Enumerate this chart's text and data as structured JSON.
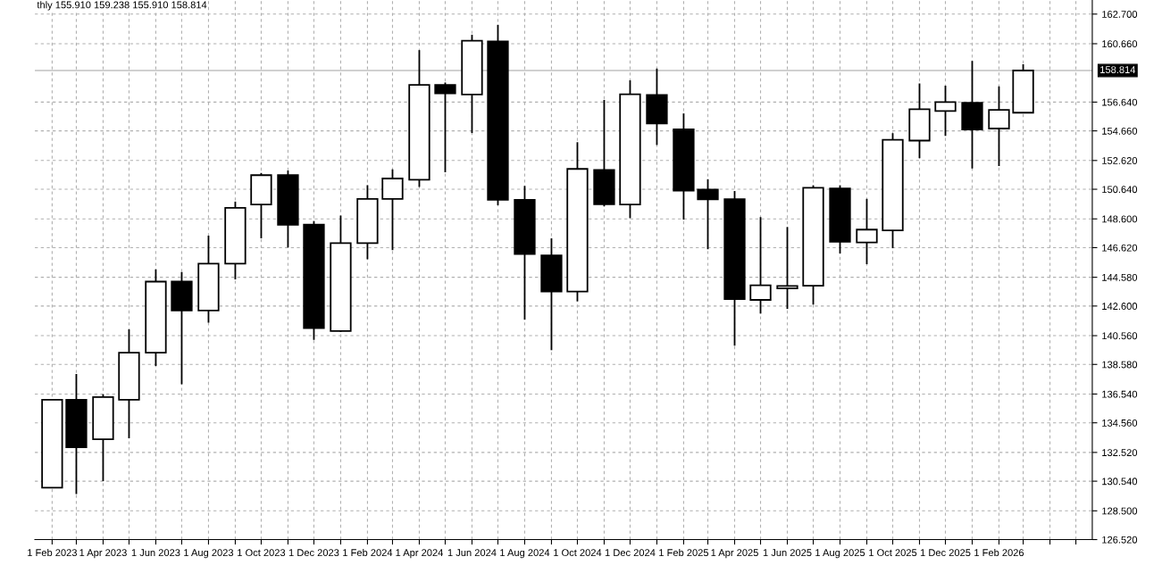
{
  "chart_data": {
    "type": "candlestick",
    "annotations": [
      "thly 155.910 159.238 155.910 158.814"
    ],
    "x": [
      "2023-02",
      "2023-03",
      "2023-04",
      "2023-05",
      "2023-06",
      "2023-07",
      "2023-08",
      "2023-09",
      "2023-10",
      "2023-11",
      "2023-12",
      "2024-01",
      "2024-02",
      "2024-03",
      "2024-04",
      "2024-05",
      "2024-06",
      "2024-07",
      "2024-08",
      "2024-09",
      "2024-10",
      "2024-11",
      "2024-12",
      "2025-01",
      "2025-02",
      "2025-03",
      "2025-04",
      "2025-05",
      "2025-06",
      "2025-07",
      "2025-08",
      "2025-09",
      "2025-10",
      "2025-11",
      "2025-12",
      "2026-01",
      "2026-02",
      "2026-03"
    ],
    "ohlc": [
      [
        130.09,
        136.15,
        130.09,
        136.15
      ],
      [
        136.15,
        137.92,
        129.66,
        132.87
      ],
      [
        133.43,
        136.53,
        130.55,
        136.33
      ],
      [
        136.15,
        141.0,
        133.5,
        139.39
      ],
      [
        139.39,
        145.12,
        138.48,
        144.28
      ],
      [
        144.28,
        144.94,
        137.21,
        142.29
      ],
      [
        142.29,
        147.44,
        141.45,
        145.52
      ],
      [
        145.52,
        149.79,
        144.43,
        149.36
      ],
      [
        149.59,
        151.76,
        147.26,
        151.61
      ],
      [
        151.61,
        151.93,
        146.63,
        148.2
      ],
      [
        148.2,
        148.45,
        140.27,
        141.08
      ],
      [
        140.88,
        148.83,
        140.82,
        146.93
      ],
      [
        146.93,
        150.92,
        145.82,
        149.97
      ],
      [
        149.97,
        152.01,
        146.45,
        151.38
      ],
      [
        151.3,
        160.22,
        150.8,
        157.82
      ],
      [
        157.82,
        157.99,
        151.81,
        157.24
      ],
      [
        157.16,
        161.28,
        154.51,
        160.87
      ],
      [
        160.82,
        161.96,
        149.54,
        149.91
      ],
      [
        149.91,
        150.87,
        141.66,
        146.18
      ],
      [
        146.08,
        147.26,
        139.56,
        143.6
      ],
      [
        143.6,
        153.88,
        142.92,
        152.04
      ],
      [
        151.97,
        156.79,
        149.46,
        149.61
      ],
      [
        149.59,
        158.14,
        148.65,
        157.18
      ],
      [
        157.13,
        158.95,
        153.69,
        155.17
      ],
      [
        154.77,
        155.86,
        148.55,
        150.54
      ],
      [
        150.62,
        151.33,
        146.51,
        149.95
      ],
      [
        149.95,
        150.52,
        139.87,
        143.07
      ],
      [
        143.02,
        148.72,
        142.08,
        144.03
      ],
      [
        143.81,
        148.04,
        142.4,
        143.98
      ],
      [
        144.0,
        150.91,
        142.7,
        150.74
      ],
      [
        150.69,
        150.91,
        146.22,
        147.03
      ],
      [
        146.98,
        149.98,
        145.48,
        147.86
      ],
      [
        147.81,
        154.5,
        146.58,
        154.04
      ],
      [
        153.99,
        157.92,
        152.78,
        156.15
      ],
      [
        156.03,
        157.77,
        154.31,
        156.64
      ],
      [
        156.59,
        159.47,
        152.07,
        154.75
      ],
      [
        154.82,
        157.72,
        152.24,
        156.1
      ],
      [
        155.91,
        159.238,
        155.91,
        158.814
      ]
    ],
    "colors": [
      "#ffffff",
      "#000000",
      "#ffffff",
      "#ffffff",
      "#ffffff",
      "#000000",
      "#ffffff",
      "#ffffff",
      "#ffffff",
      "#000000",
      "#000000",
      "#ffffff",
      "#ffffff",
      "#ffffff",
      "#ffffff",
      "#000000",
      "#ffffff",
      "#000000",
      "#000000",
      "#000000",
      "#ffffff",
      "#000000",
      "#ffffff",
      "#000000",
      "#000000",
      "#000000",
      "#000000",
      "#ffffff",
      "#ffffff",
      "#ffffff",
      "#000000",
      "#ffffff",
      "#ffffff",
      "#ffffff",
      "#ffffff",
      "#000000",
      "#ffffff",
      "#ffffff"
    ],
    "xlim": [
      "2023-01-12",
      "2026-05-20"
    ],
    "xticks": [
      {
        "value": "2023-02-01",
        "label": "1 Feb 2023"
      },
      {
        "value": "2023-03-01",
        "label": null
      },
      {
        "value": "2023-04-01",
        "label": "1 Apr 2023"
      },
      {
        "value": "2023-05-01",
        "label": null
      },
      {
        "value": "2023-06-01",
        "label": "1 Jun 2023"
      },
      {
        "value": "2023-07-01",
        "label": null
      },
      {
        "value": "2023-08-01",
        "label": "1 Aug 2023"
      },
      {
        "value": "2023-09-01",
        "label": null
      },
      {
        "value": "2023-10-01",
        "label": "1 Oct 2023"
      },
      {
        "value": "2023-11-01",
        "label": null
      },
      {
        "value": "2023-12-01",
        "label": "1 Dec 2023"
      },
      {
        "value": "2024-01-01",
        "label": null
      },
      {
        "value": "2024-02-01",
        "label": "1 Feb 2024"
      },
      {
        "value": "2024-03-01",
        "label": null
      },
      {
        "value": "2024-04-01",
        "label": "1 Apr 2024"
      },
      {
        "value": "2024-05-01",
        "label": null
      },
      {
        "value": "2024-06-01",
        "label": "1 Jun 2024"
      },
      {
        "value": "2024-07-01",
        "label": null
      },
      {
        "value": "2024-08-01",
        "label": "1 Aug 2024"
      },
      {
        "value": "2024-09-01",
        "label": null
      },
      {
        "value": "2024-10-01",
        "label": "1 Oct 2024"
      },
      {
        "value": "2024-11-01",
        "label": null
      },
      {
        "value": "2024-12-01",
        "label": "1 Dec 2024"
      },
      {
        "value": "2025-01-01",
        "label": null
      },
      {
        "value": "2025-02-01",
        "label": "1 Feb 2025"
      },
      {
        "value": "2025-03-01",
        "label": null
      },
      {
        "value": "2025-04-01",
        "label": "1 Apr 2025"
      },
      {
        "value": "2025-05-01",
        "label": null
      },
      {
        "value": "2025-06-01",
        "label": "1 Jun 2025"
      },
      {
        "value": "2025-07-01",
        "label": null
      },
      {
        "value": "2025-08-01",
        "label": "1 Aug 2025"
      },
      {
        "value": "2025-09-01",
        "label": null
      },
      {
        "value": "2025-10-01",
        "label": "1 Oct 2025"
      },
      {
        "value": "2025-11-01",
        "label": null
      },
      {
        "value": "2025-12-01",
        "label": "1 Dec 2025"
      },
      {
        "value": "2026-01-01",
        "label": null
      },
      {
        "value": "2026-02-01",
        "label": "1 Feb 2026"
      },
      {
        "value": "2026-03-01",
        "label": null
      },
      {
        "value": "2026-04-01",
        "label": null
      },
      {
        "value": "2026-05-01",
        "label": null
      }
    ],
    "ylim": [
      126.52,
      163.67
    ],
    "yticks": [
      {
        "value": 126.52,
        "label": "126.520"
      },
      {
        "value": 128.5,
        "label": "128.500"
      },
      {
        "value": 130.54,
        "label": "130.540"
      },
      {
        "value": 132.52,
        "label": "132.520"
      },
      {
        "value": 134.56,
        "label": "134.560"
      },
      {
        "value": 136.54,
        "label": "136.540"
      },
      {
        "value": 138.58,
        "label": "138.580"
      },
      {
        "value": 140.56,
        "label": "140.560"
      },
      {
        "value": 142.6,
        "label": "142.600"
      },
      {
        "value": 144.58,
        "label": "144.580"
      },
      {
        "value": 146.62,
        "label": "146.620"
      },
      {
        "value": 148.6,
        "label": "148.600"
      },
      {
        "value": 150.64,
        "label": "150.640"
      },
      {
        "value": 152.62,
        "label": "152.620"
      },
      {
        "value": 154.66,
        "label": "154.660"
      },
      {
        "value": 156.64,
        "label": "156.640"
      },
      {
        "value": 160.66,
        "label": "160.660"
      },
      {
        "value": 162.7,
        "label": "162.700"
      }
    ],
    "ref_lines": [
      {
        "axis": "y",
        "value": 158.814,
        "label": "158.814",
        "color": "#c0c0c0",
        "line_style": "solid"
      }
    ],
    "grid": true
  }
}
